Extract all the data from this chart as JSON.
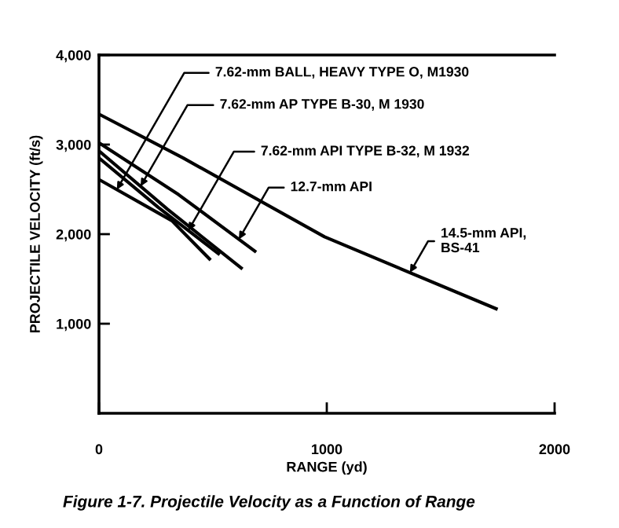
{
  "chart_data": {
    "type": "line",
    "xlabel": "RANGE (yd)",
    "ylabel": "PROJECTILE VELOCITY (ft/s)",
    "xlim": [
      0,
      2000
    ],
    "xticks": [
      0,
      1000,
      2000
    ],
    "ylim": [
      0,
      4000
    ],
    "yticks": [
      {
        "value": 1000,
        "label": "1,000"
      },
      {
        "value": 2000,
        "label": "2,000"
      },
      {
        "value": 3000,
        "label": "3,000"
      },
      {
        "value": 4000,
        "label": "4,000"
      }
    ],
    "grid": false,
    "legend": false,
    "marker": "none",
    "line_style": "solid",
    "series": [
      {
        "name": "7.62-mm BALL, HEAVY TYPE O, M1930",
        "color": "#000000",
        "x": [
          0,
          320,
          490
        ],
        "values": [
          2610,
          2150,
          1710
        ]
      },
      {
        "name": "7.62-mm AP TYPE B-30, M 1930",
        "color": "#000000",
        "x": [
          0,
          300,
          630
        ],
        "values": [
          2930,
          2280,
          1610
        ]
      },
      {
        "name": "7.62-mm API TYPE B-32, M 1932",
        "color": "#000000",
        "x": [
          0,
          260,
          530
        ],
        "values": [
          2850,
          2300,
          1770
        ]
      },
      {
        "name": "12.7-mm API",
        "color": "#000000",
        "x": [
          0,
          350,
          690
        ],
        "values": [
          3020,
          2440,
          1800
        ]
      },
      {
        "name": "14.5-mm API,\nBS-41",
        "color": "#000000",
        "x": [
          0,
          370,
          990,
          1750
        ],
        "values": [
          3340,
          2850,
          1970,
          1160
        ]
      }
    ],
    "annotations": [
      "Figure 1-7. Projectile Velocity as a Function of Range"
    ]
  }
}
